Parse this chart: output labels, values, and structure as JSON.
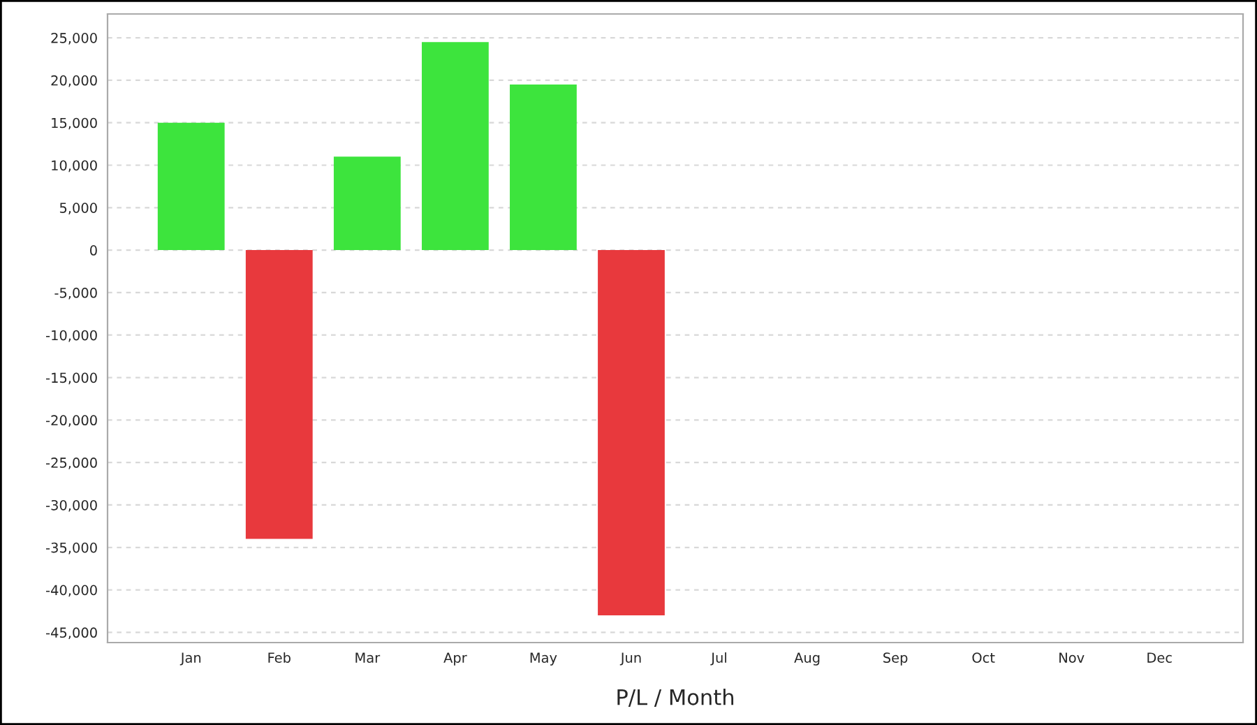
{
  "chart_data": {
    "type": "bar",
    "xlabel": "P/L / Month",
    "categories": [
      "Jan",
      "Feb",
      "Mar",
      "Apr",
      "May",
      "Jun",
      "Jul",
      "Aug",
      "Sep",
      "Oct",
      "Nov",
      "Dec"
    ],
    "values": [
      15000,
      -34000,
      11000,
      24500,
      19500,
      -43000,
      null,
      null,
      null,
      null,
      null,
      null
    ],
    "colors": [
      "#3de43d",
      "#e8393d",
      "#3de43d",
      "#3de43d",
      "#3de43d",
      "#e8393d",
      "#3de43d",
      "#3de43d",
      "#3de43d",
      "#3de43d",
      "#3de43d",
      "#3de43d"
    ],
    "ylim": [
      -46200,
      27800
    ],
    "yticks": [
      {
        "value": -45000,
        "label": "-45,000"
      },
      {
        "value": -40000,
        "label": "-40,000"
      },
      {
        "value": -35000,
        "label": "-35,000"
      },
      {
        "value": -30000,
        "label": "-30,000"
      },
      {
        "value": -25000,
        "label": "-25,000"
      },
      {
        "value": -20000,
        "label": "-20,000"
      },
      {
        "value": -15000,
        "label": "-15,000"
      },
      {
        "value": -10000,
        "label": "-10,000"
      },
      {
        "value": -5000,
        "label": "-5,000"
      },
      0,
      {
        "value": 5000,
        "label": "5,000"
      },
      {
        "value": 10000,
        "label": "10,000"
      },
      {
        "value": 15000,
        "label": "15,000"
      },
      {
        "value": 20000,
        "label": "20,000"
      },
      {
        "value": 25000,
        "label": "25,000"
      }
    ],
    "grid": "y"
  }
}
